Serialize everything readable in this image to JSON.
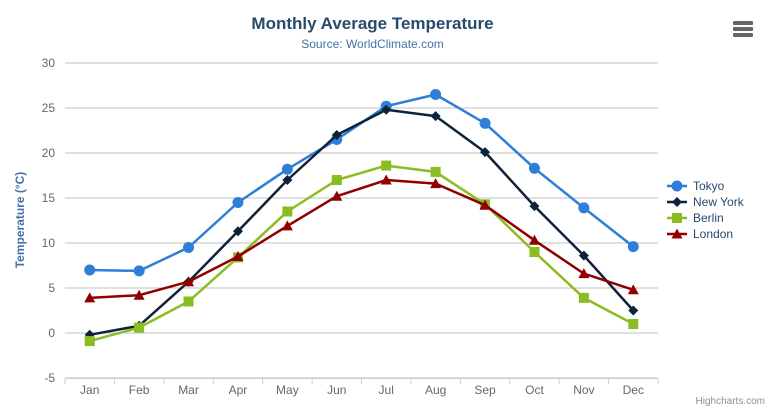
{
  "credits": "Highcharts.com",
  "colors": {
    "title": "#274b6d",
    "subtitle": "#4572A7",
    "axis_title": "#4572A7",
    "tick_label": "#666666",
    "gridline": "#C0C0C0",
    "axis_line": "#C0D0E0",
    "legend_text": "#274b6d",
    "credits": "#909090",
    "menu_icon": "#666666"
  },
  "chart_data": {
    "type": "line",
    "title": "Monthly Average Temperature",
    "subtitle": "Source: WorldClimate.com",
    "xlabel": "",
    "ylabel": "Temperature (°C)",
    "categories": [
      "Jan",
      "Feb",
      "Mar",
      "Apr",
      "May",
      "Jun",
      "Jul",
      "Aug",
      "Sep",
      "Oct",
      "Nov",
      "Dec"
    ],
    "yticks": [
      30,
      25,
      20,
      15,
      10,
      5,
      0,
      -5
    ],
    "ylim": [
      -5,
      30
    ],
    "grid": true,
    "legend_position": "right",
    "series": [
      {
        "name": "Tokyo",
        "color": "#2f7ed8",
        "marker": "circle",
        "values": [
          7.0,
          6.9,
          9.5,
          14.5,
          18.2,
          21.5,
          25.2,
          26.5,
          23.3,
          18.3,
          13.9,
          9.6
        ]
      },
      {
        "name": "New York",
        "color": "#0d233a",
        "marker": "diamond",
        "values": [
          -0.2,
          0.8,
          5.7,
          11.3,
          17.0,
          22.0,
          24.8,
          24.1,
          20.1,
          14.1,
          8.6,
          2.5
        ]
      },
      {
        "name": "Berlin",
        "color": "#8bbc21",
        "marker": "square",
        "values": [
          -0.9,
          0.6,
          3.5,
          8.4,
          13.5,
          17.0,
          18.6,
          17.9,
          14.3,
          9.0,
          3.9,
          1.0
        ]
      },
      {
        "name": "London",
        "color": "#910000",
        "marker": "triangle",
        "values": [
          3.9,
          4.2,
          5.7,
          8.5,
          11.9,
          15.2,
          17.0,
          16.6,
          14.2,
          10.3,
          6.6,
          4.8
        ]
      }
    ]
  }
}
